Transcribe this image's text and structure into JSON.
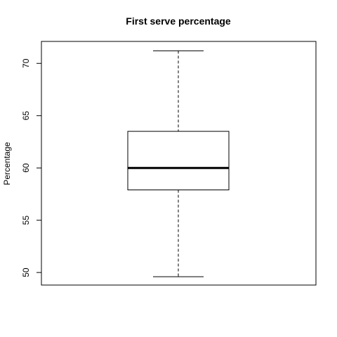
{
  "chart_data": {
    "type": "boxplot",
    "title": "First serve percentage",
    "xlabel": "",
    "ylabel": "Percentage",
    "ylim": [
      48.8,
      72.1
    ],
    "yticks": [
      50,
      55,
      60,
      65,
      70
    ],
    "ytick_labels": [
      "50",
      "55",
      "60",
      "65",
      "70"
    ],
    "grid": false,
    "box": {
      "min": 49.6,
      "q1": 57.9,
      "median": 60.0,
      "q3": 63.5,
      "max": 71.2
    }
  }
}
